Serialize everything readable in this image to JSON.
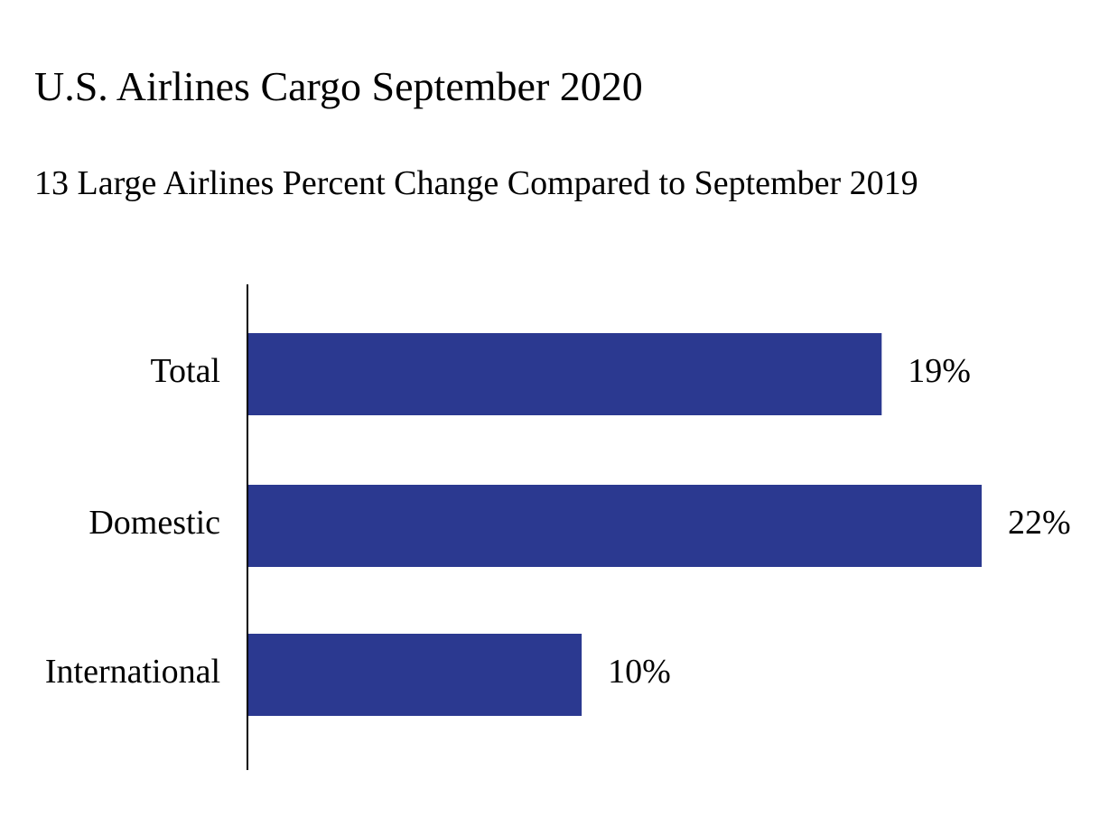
{
  "chart_data": {
    "type": "bar",
    "orientation": "horizontal",
    "title": "U.S. Airlines Cargo September 2020",
    "subtitle": "13 Large Airlines Percent Change Compared to September 2019",
    "categories": [
      "Total",
      "Domestic",
      "International"
    ],
    "values": [
      19,
      22,
      10
    ],
    "value_labels": [
      "19%",
      "22%",
      "10%"
    ],
    "unit": "%",
    "xlim": [
      0,
      22
    ],
    "grid": false,
    "legend": "none",
    "bar_color": "#2b3990"
  }
}
